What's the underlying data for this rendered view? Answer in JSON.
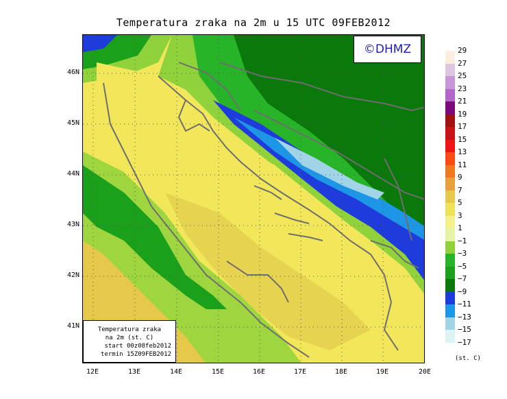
{
  "title": "Temperatura zraka na 2m u 15 UTC 09FEB2012",
  "brand": "©DHMZ",
  "info_box": {
    "line1": "Temperatura zraka",
    "line2": "na 2m (st. C)",
    "line3": "start 00z08feb2012",
    "line4": "termin 15Z09FEB2012"
  },
  "axes": {
    "lat_labels": [
      "46N",
      "45N",
      "44N",
      "43N",
      "42N",
      "41N"
    ],
    "lon_labels": [
      "12E",
      "13E",
      "14E",
      "15E",
      "16E",
      "17E",
      "18E",
      "19E",
      "20E"
    ]
  },
  "legend": {
    "unit": "(st. C)",
    "labels": [
      "29",
      "27",
      "25",
      "23",
      "21",
      "19",
      "17",
      "15",
      "13",
      "11",
      "9",
      "7",
      "5",
      "3",
      "1",
      "−1",
      "−3",
      "−5",
      "−7",
      "−9",
      "−11",
      "−13",
      "−15",
      "−17"
    ],
    "colors": [
      "#fbeee0",
      "#dcc6e0",
      "#c896d8",
      "#b466c8",
      "#7d0a7d",
      "#a01212",
      "#c81414",
      "#ee1414",
      "#fa4a14",
      "#f0781e",
      "#e8a03c",
      "#e6c84a",
      "#f0e258",
      "#f4f08c",
      "#e6f2a8",
      "#90d23c",
      "#28b428",
      "#1aa01a",
      "#0a780a",
      "#1e3cdc",
      "#1e96e6",
      "#a0d4e6",
      "#dcf4f4"
    ]
  },
  "colors": {
    "sea": "#f2e65a",
    "coast_land": "#e6c84a",
    "mountain": "#1e3cdc"
  }
}
